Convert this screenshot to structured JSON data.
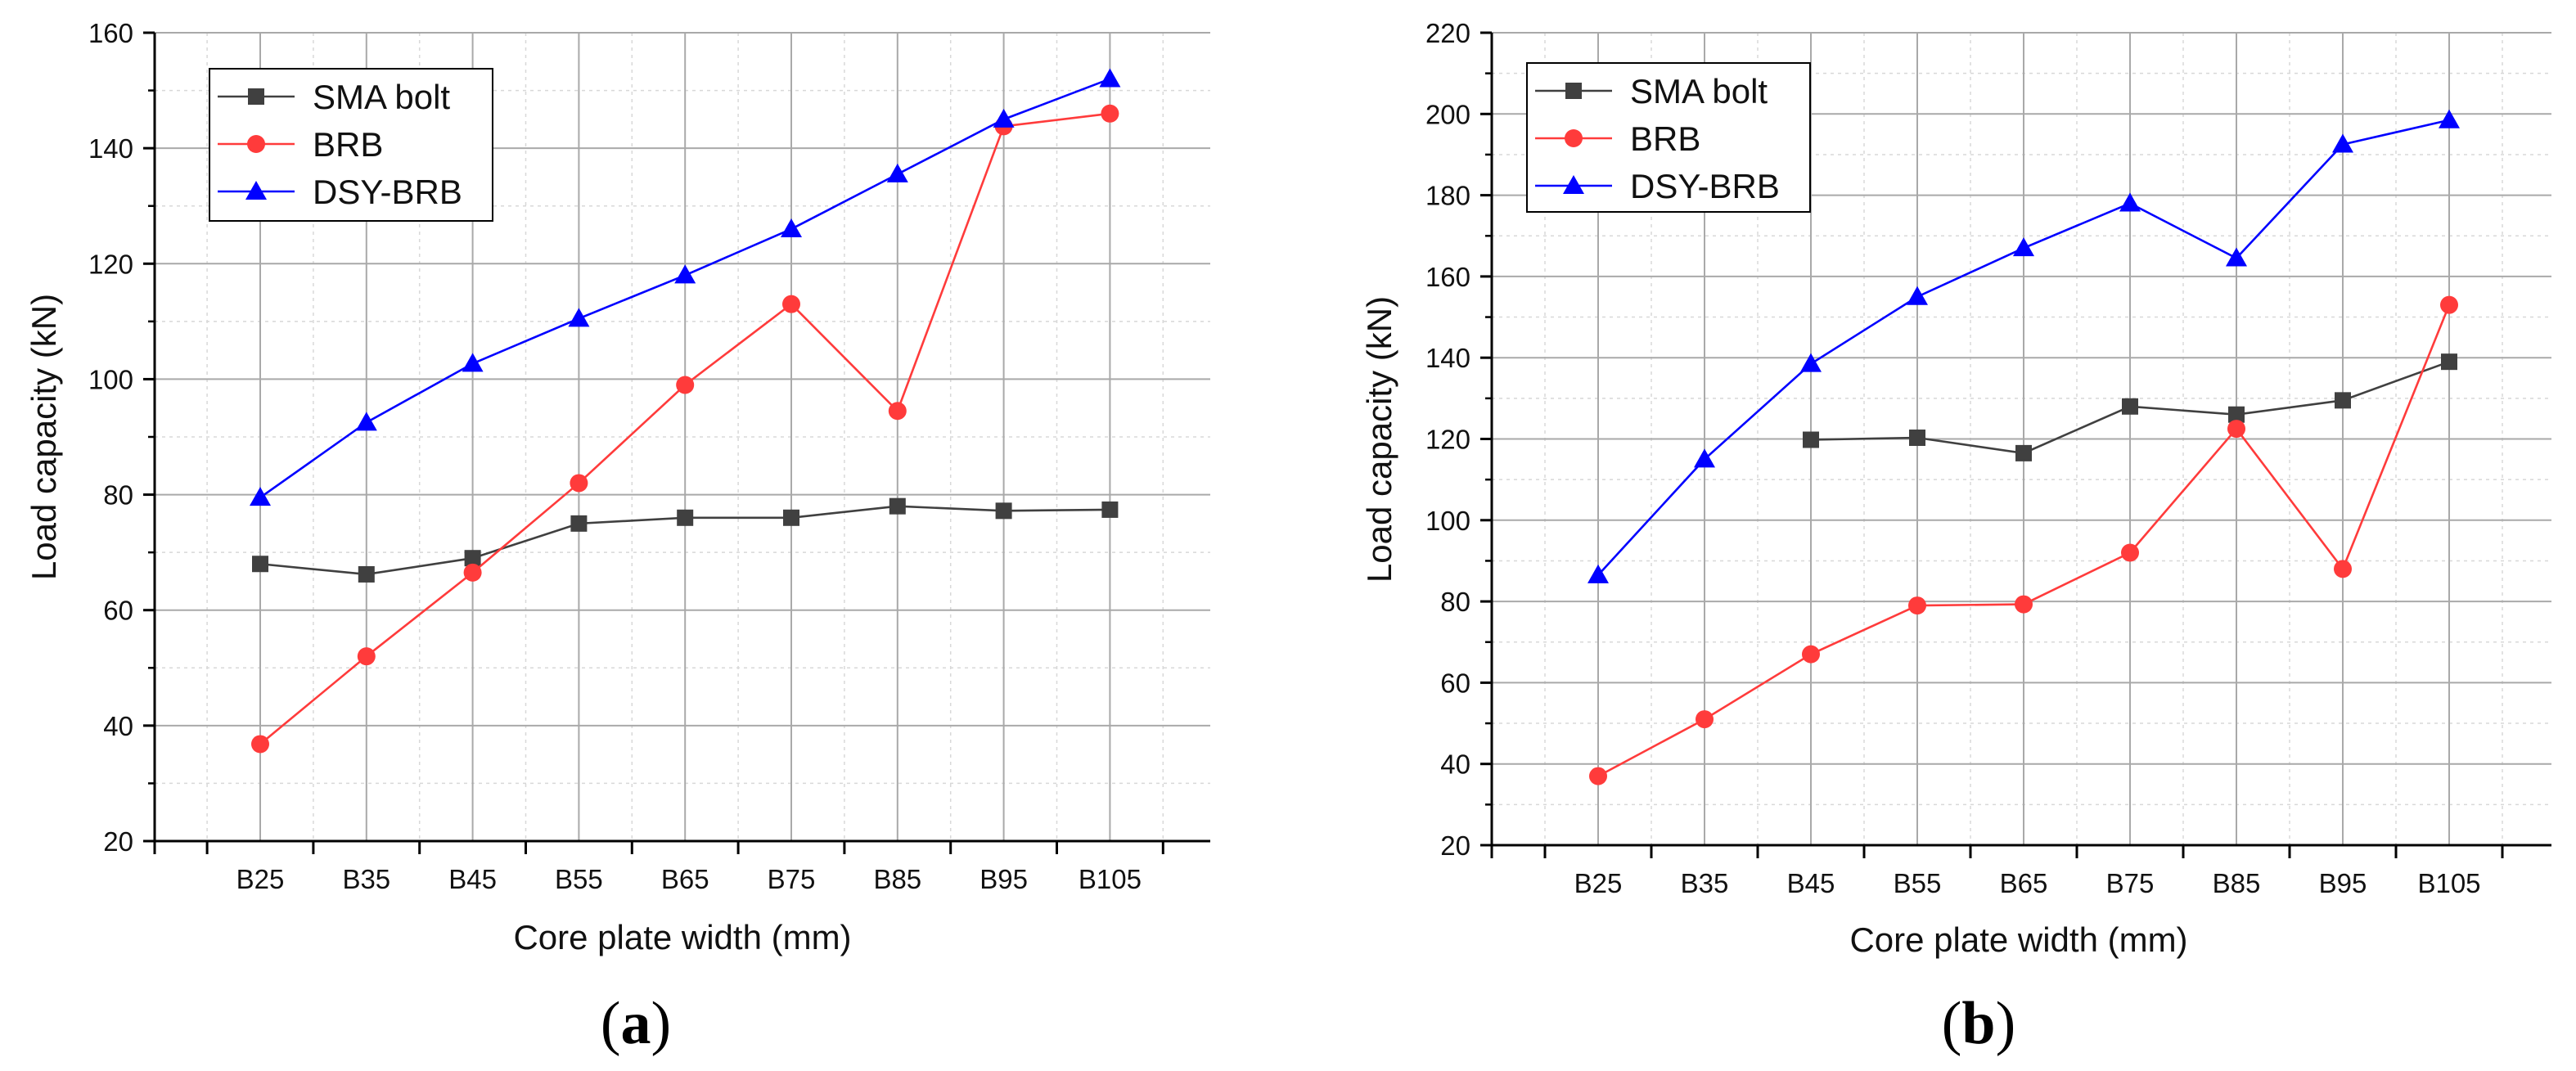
{
  "chart_data": [
    {
      "type": "line",
      "panel_label": "a",
      "title": "",
      "xlabel": "Core plate width (mm)",
      "ylabel": "Load capacity (kN)",
      "categories": [
        "B25",
        "B35",
        "B45",
        "B55",
        "B65",
        "B75",
        "B85",
        "B95",
        "B105"
      ],
      "ylim": [
        20,
        160
      ],
      "yticks": [
        20,
        40,
        60,
        80,
        100,
        120,
        140,
        160
      ],
      "grid": true,
      "legend_position": "top-left",
      "series": [
        {
          "name": "SMA bolt",
          "marker": "square",
          "color": "#404040",
          "values": [
            68,
            66.2,
            69,
            75,
            76,
            76,
            78,
            77.2,
            77.4
          ]
        },
        {
          "name": "BRB",
          "marker": "circle",
          "color": "#ff3b3b",
          "values": [
            36.8,
            52,
            66.5,
            82,
            99,
            113,
            94.5,
            143.8,
            146
          ]
        },
        {
          "name": "DSY-BRB",
          "marker": "triangle",
          "color": "#0000ff",
          "values": [
            79.5,
            92.5,
            102.7,
            110.5,
            118,
            126,
            135.5,
            145,
            152
          ]
        }
      ]
    },
    {
      "type": "line",
      "panel_label": "b",
      "title": "",
      "xlabel": "Core plate width (mm)",
      "ylabel": "Load capacity (kN)",
      "categories": [
        "B25",
        "B35",
        "B45",
        "B55",
        "B65",
        "B75",
        "B85",
        "B95",
        "B105"
      ],
      "ylim": [
        20,
        220
      ],
      "yticks": [
        20,
        40,
        60,
        80,
        100,
        120,
        140,
        160,
        180,
        200,
        220
      ],
      "grid": true,
      "legend_position": "top-left",
      "series": [
        {
          "name": "SMA bolt",
          "marker": "square",
          "color": "#404040",
          "values": [
            null,
            null,
            119.8,
            120.3,
            116.5,
            128,
            126,
            129.5,
            139
          ]
        },
        {
          "name": "BRB",
          "marker": "circle",
          "color": "#ff3b3b",
          "values": [
            37,
            51,
            67,
            79,
            79.3,
            92,
            122.5,
            88,
            153
          ]
        },
        {
          "name": "DSY-BRB",
          "marker": "triangle",
          "color": "#0000ff",
          "values": [
            86.5,
            115,
            138.5,
            155,
            167,
            178,
            164.5,
            192.5,
            198.5
          ]
        }
      ]
    }
  ]
}
